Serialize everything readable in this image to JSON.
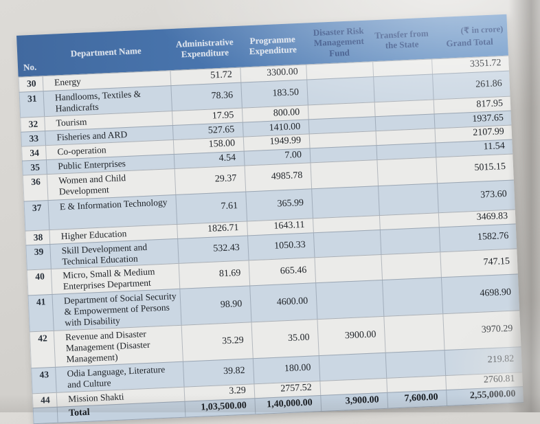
{
  "table": {
    "note": "(₹ in crore)",
    "header": {
      "no": "No.",
      "dept": "Department Name",
      "admin": "Administrative Expenditure",
      "prog": "Programme Expenditure",
      "drmf": "Disaster Risk Management Fund",
      "transfer": "Transfer from the State",
      "grand": "Grand Total"
    },
    "rows": [
      {
        "no": "30",
        "dept": "Energy",
        "admin": "51.72",
        "prog": "3300.00",
        "drmf": "",
        "transfer": "",
        "grand": "3351.72"
      },
      {
        "no": "31",
        "dept": "Handlooms, Textiles & Handicrafts",
        "admin": "78.36",
        "prog": "183.50",
        "drmf": "",
        "transfer": "",
        "grand": "261.86"
      },
      {
        "no": "32",
        "dept": "Tourism",
        "admin": "17.95",
        "prog": "800.00",
        "drmf": "",
        "transfer": "",
        "grand": "817.95"
      },
      {
        "no": "33",
        "dept": "Fisheries and ARD",
        "admin": "527.65",
        "prog": "1410.00",
        "drmf": "",
        "transfer": "",
        "grand": "1937.65"
      },
      {
        "no": "34",
        "dept": "Co-operation",
        "admin": "158.00",
        "prog": "1949.99",
        "drmf": "",
        "transfer": "",
        "grand": "2107.99"
      },
      {
        "no": "35",
        "dept": "Public Enterprises",
        "admin": "4.54",
        "prog": "7.00",
        "drmf": "",
        "transfer": "",
        "grand": "11.54"
      },
      {
        "no": "36",
        "dept": "Women and Child Development",
        "admin": "29.37",
        "prog": "4985.78",
        "drmf": "",
        "transfer": "",
        "grand": "5015.15"
      },
      {
        "no": "37",
        "dept": "E & Information Technology",
        "admin": "7.61",
        "prog": "365.99",
        "drmf": "",
        "transfer": "",
        "grand": "373.60"
      },
      {
        "no": "38",
        "dept": "Higher Education",
        "admin": "1826.71",
        "prog": "1643.11",
        "drmf": "",
        "transfer": "",
        "grand": "3469.83"
      },
      {
        "no": "39",
        "dept": "Skill Development and Technical Education",
        "admin": "532.43",
        "prog": "1050.33",
        "drmf": "",
        "transfer": "",
        "grand": "1582.76"
      },
      {
        "no": "40",
        "dept": "Micro, Small & Medium Enterprises Department",
        "admin": "81.69",
        "prog": "665.46",
        "drmf": "",
        "transfer": "",
        "grand": "747.15"
      },
      {
        "no": "41",
        "dept": "Department of Social Security & Empowerment of Persons with Disability",
        "admin": "98.90",
        "prog": "4600.00",
        "drmf": "",
        "transfer": "",
        "grand": "4698.90"
      },
      {
        "no": "42",
        "dept": "Revenue and Disaster Management (Disaster Management)",
        "admin": "35.29",
        "prog": "35.00",
        "drmf": "3900.00",
        "transfer": "",
        "grand": "3970.29"
      },
      {
        "no": "43",
        "dept": "Odia Language, Literature and Culture",
        "admin": "39.82",
        "prog": "180.00",
        "drmf": "",
        "transfer": "",
        "grand": "219.82"
      },
      {
        "no": "44",
        "dept": "Mission Shakti",
        "admin": "3.29",
        "prog": "2757.52",
        "drmf": "",
        "transfer": "",
        "grand": "2760.81"
      }
    ],
    "total": {
      "no": "",
      "dept": "Total",
      "admin": "1,03,500.00",
      "prog": "1,40,000.00",
      "drmf": "3,900.00",
      "transfer": "7,600.00",
      "grand": "2,55,000.00"
    }
  },
  "colors": {
    "header_blue": "#41699f",
    "header_blue_light": "#6290c4",
    "header_text_light": "#dde3ec",
    "header_text_dark": "#1c3a75",
    "stripe_light": "#ebebe9",
    "stripe_blue": "#cbd7e3",
    "total_bg": "#c3d1df"
  }
}
